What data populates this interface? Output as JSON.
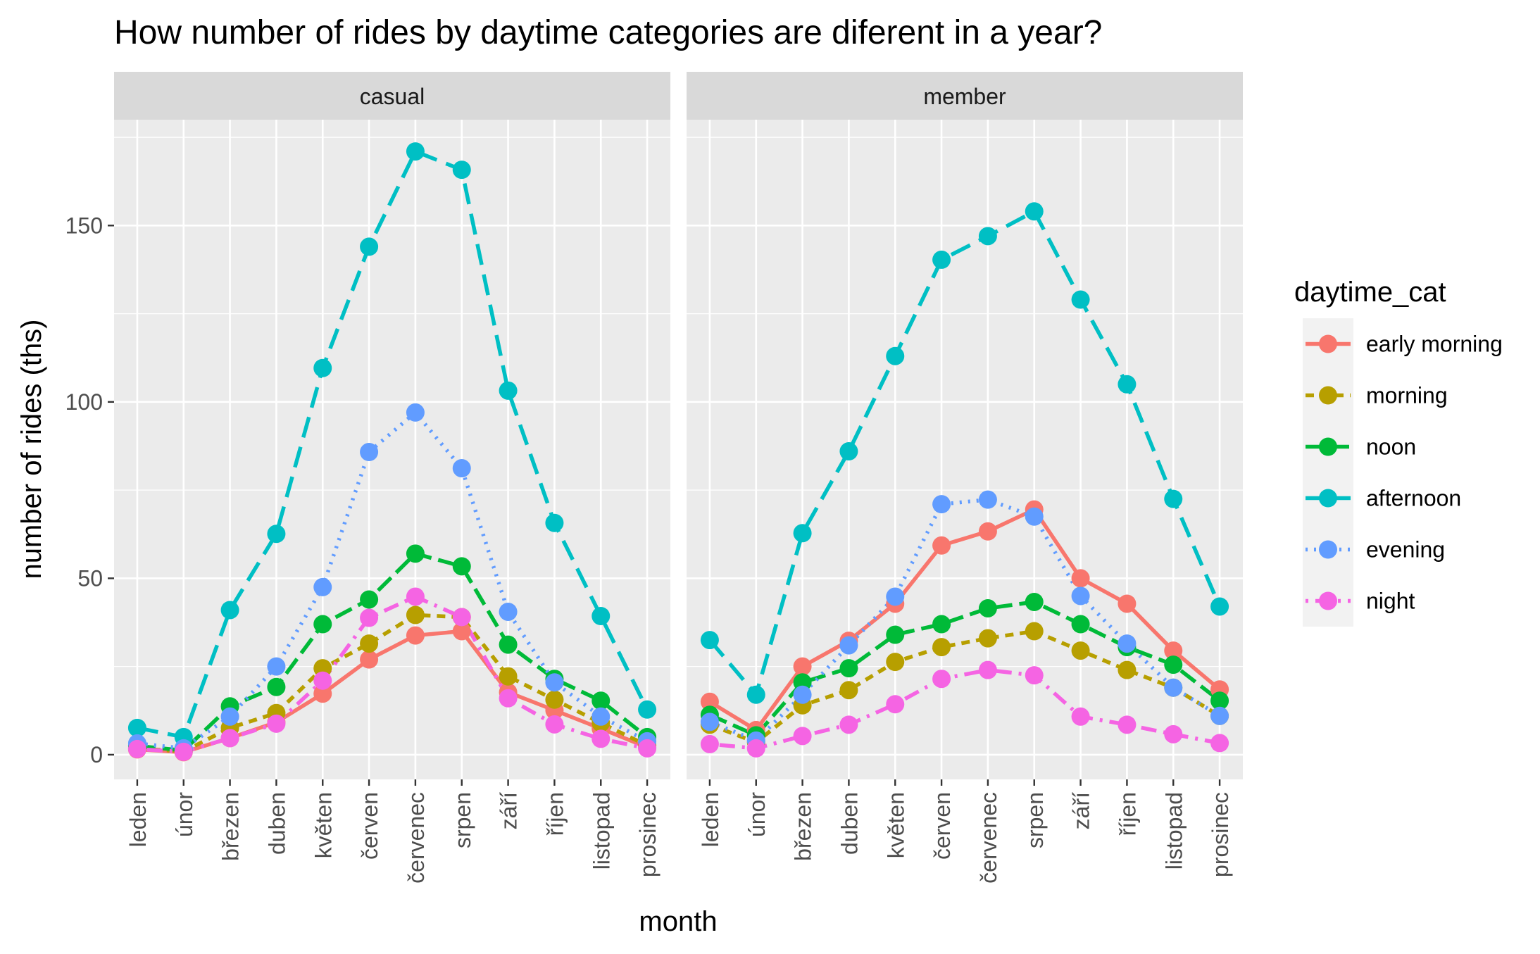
{
  "chart_data": {
    "type": "line",
    "title": "How number of rides by daytime categories are diferent in a year?",
    "xlabel": "month",
    "ylabel": "number of rides (ths)",
    "ylim": [
      -7,
      180
    ],
    "y_ticks": [
      0,
      50,
      100,
      150
    ],
    "grid": true,
    "legend": {
      "title": "daytime_cat",
      "position": "right"
    },
    "categories": [
      "leden",
      "únor",
      "březen",
      "duben",
      "květen",
      "červen",
      "červenec",
      "srpen",
      "září",
      "říjen",
      "listopad",
      "prosinec"
    ],
    "series_styles": [
      {
        "name": "early morning",
        "color": "#F8766D",
        "dash": "solid"
      },
      {
        "name": "morning",
        "color": "#B79F00",
        "dash": "dashed"
      },
      {
        "name": "noon",
        "color": "#00BA38",
        "dash": "longdash"
      },
      {
        "name": "afternoon",
        "color": "#00BFC4",
        "dash": "longdash2"
      },
      {
        "name": "evening",
        "color": "#619CFF",
        "dash": "dotted"
      },
      {
        "name": "night",
        "color": "#F564E3",
        "dash": "dotdash"
      }
    ],
    "panels": [
      {
        "label": "casual",
        "series": [
          {
            "name": "early morning",
            "values": [
              1.5,
              0.7,
              4.7,
              9.2,
              17.3,
              27,
              33.8,
              35,
              17.7,
              12.6,
              7.4,
              2.1
            ]
          },
          {
            "name": "morning",
            "values": [
              1.8,
              0.9,
              7.6,
              11.8,
              24.5,
              31.5,
              39.6,
              39,
              22.2,
              15.6,
              9,
              2.6
            ]
          },
          {
            "name": "noon",
            "values": [
              2.5,
              1.2,
              13.7,
              19.2,
              37,
              44,
              57,
              53.4,
              31.2,
              21.5,
              15.3,
              5
            ]
          },
          {
            "name": "afternoon",
            "values": [
              7.6,
              5,
              41,
              62.6,
              109.6,
              144,
              171,
              165.8,
              103.2,
              65.7,
              39.3,
              12.8
            ]
          },
          {
            "name": "evening",
            "values": [
              3.2,
              1.8,
              10.8,
              25,
              47.5,
              85.8,
              97,
              81.2,
              40.5,
              20.5,
              10.8,
              3.8
            ]
          },
          {
            "name": "night",
            "values": [
              1.6,
              0.8,
              4.7,
              8.8,
              21,
              38.8,
              44.8,
              39,
              16,
              8.6,
              4.5,
              1.8
            ]
          }
        ]
      },
      {
        "label": "member",
        "series": [
          {
            "name": "early morning",
            "values": [
              15,
              7,
              25,
              32.3,
              42.8,
              59.3,
              63.3,
              69.5,
              50,
              42.8,
              29.5,
              18.5
            ]
          },
          {
            "name": "morning",
            "values": [
              8.5,
              3.5,
              14,
              18.3,
              26.3,
              30.5,
              33,
              35,
              29.5,
              24,
              19,
              11
            ]
          },
          {
            "name": "noon",
            "values": [
              11.3,
              5.5,
              20.5,
              24.5,
              34,
              37,
              41.5,
              43.3,
              37,
              30.5,
              25.5,
              15.3
            ]
          },
          {
            "name": "afternoon",
            "values": [
              32.5,
              17,
              62.8,
              86,
              113,
              140.3,
              147,
              154,
              129,
              105,
              72.5,
              42
            ]
          },
          {
            "name": "evening",
            "values": [
              9.3,
              4,
              17,
              31,
              44.8,
              71,
              72.3,
              67.5,
              45,
              31.5,
              19,
              11
            ]
          },
          {
            "name": "night",
            "values": [
              3,
              1.8,
              5.3,
              8.5,
              14.3,
              21.5,
              24,
              22.5,
              10.8,
              8.5,
              5.8,
              3.3
            ]
          }
        ]
      }
    ]
  }
}
